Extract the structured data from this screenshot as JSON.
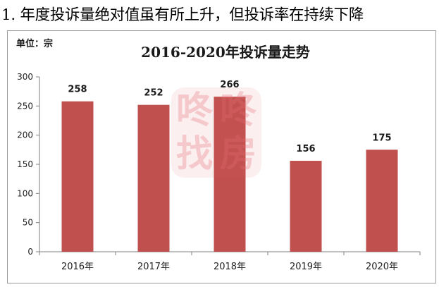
{
  "page_heading": "1. 年度投诉量绝对值虽有所上升，但投诉率在持续下降",
  "unit_label": "单位：宗",
  "watermark": {
    "chars": [
      "咚",
      "咚",
      "找",
      "房"
    ],
    "color": "#e6666e"
  },
  "chart_data": {
    "type": "bar",
    "title": "2016-2020年投诉量走势",
    "xlabel": "",
    "ylabel": "",
    "categories": [
      "2016年",
      "2017年",
      "2018年",
      "2019年",
      "2020年"
    ],
    "values": [
      258,
      252,
      266,
      156,
      175
    ],
    "data_labels": [
      "258",
      "252",
      "266",
      "156",
      "175"
    ],
    "ylim": [
      0,
      300
    ],
    "yticks": [
      0,
      50,
      100,
      150,
      200,
      250,
      300
    ],
    "grid": false,
    "legend": "none",
    "bar_color": "#c0504d"
  }
}
